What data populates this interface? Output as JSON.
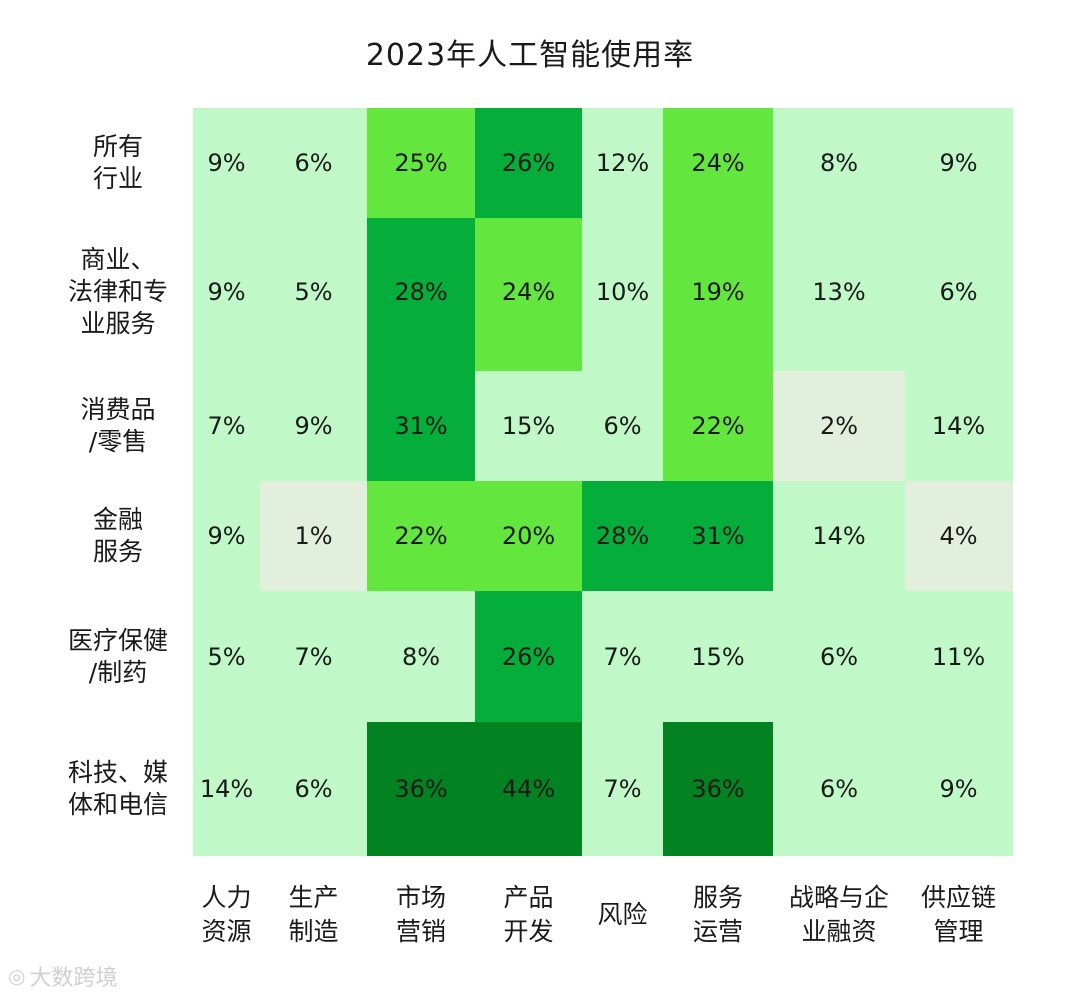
{
  "chart_data": {
    "type": "heatmap",
    "title": "2023年人工智能使用率",
    "rows": [
      "所有\n行业",
      "商业、\n法律和专\n业服务",
      "消费品\n/零售",
      "金融\n服务",
      "医疗保健\n/制药",
      "科技、媒\n体和电信"
    ],
    "columns": [
      "人力\n资源",
      "生产\n制造",
      "市场\n营销",
      "产品\n开发",
      "风险",
      "服务\n运营",
      "战略与企\n业融资",
      "供应链\n管理"
    ],
    "values": [
      [
        9,
        6,
        25,
        26,
        12,
        24,
        8,
        9
      ],
      [
        9,
        5,
        28,
        24,
        10,
        19,
        13,
        6
      ],
      [
        7,
        9,
        31,
        15,
        6,
        22,
        2,
        14
      ],
      [
        9,
        1,
        22,
        20,
        28,
        31,
        14,
        4
      ],
      [
        5,
        7,
        8,
        26,
        7,
        15,
        6,
        11
      ],
      [
        14,
        6,
        36,
        44,
        7,
        36,
        6,
        9
      ]
    ],
    "value_suffix": "%",
    "color_scale": [
      {
        "max": 4,
        "color": "#e2efdc"
      },
      {
        "max": 15,
        "color": "#c1f8c8"
      },
      {
        "max": 25,
        "color": "#63e63e"
      },
      {
        "max": 32,
        "color": "#05ae3a"
      },
      {
        "max": 100,
        "color": "#028220"
      }
    ]
  },
  "watermark": {
    "text": "大数跨境",
    "icon": "brand-logo-icon"
  }
}
